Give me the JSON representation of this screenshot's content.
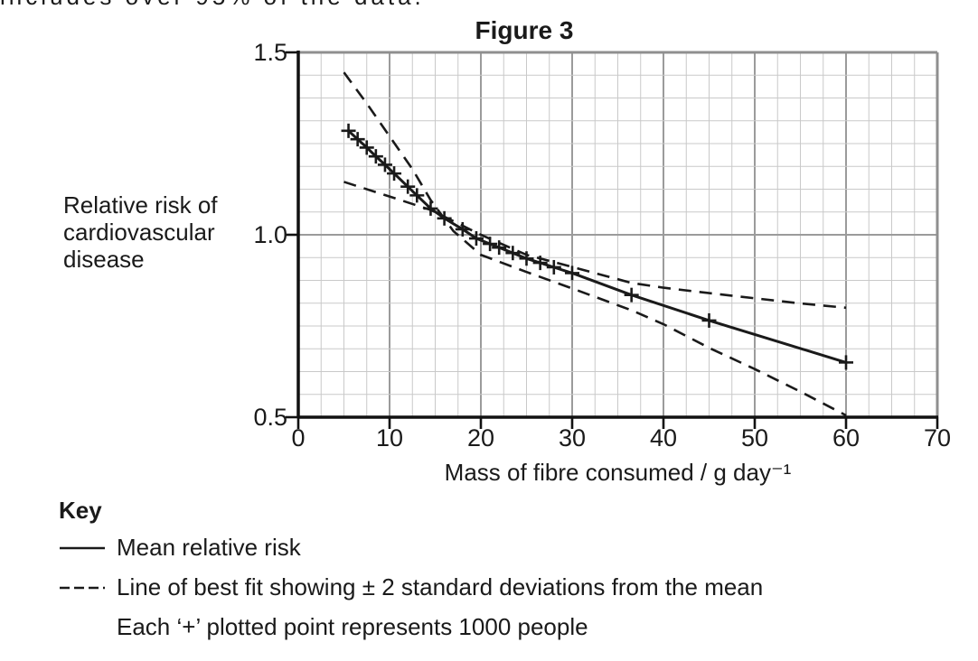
{
  "page": {
    "top_clipped_text": "includes over 95% of the data.",
    "background": "#ffffff"
  },
  "figure": {
    "title": "Figure 3"
  },
  "chart_data": {
    "type": "line",
    "title": "Figure 3",
    "xlabel": "Mass of fibre consumed / g day⁻¹",
    "ylabel": "Relative risk of cardiovascular disease",
    "ylabel_lines": [
      "Relative risk of",
      "cardiovascular",
      "disease"
    ],
    "xlim": [
      0,
      70
    ],
    "ylim": [
      0.5,
      1.5
    ],
    "x_ticks": [
      0,
      10,
      20,
      30,
      40,
      50,
      60,
      70
    ],
    "y_ticks": [
      1.5,
      1.0,
      0.5
    ],
    "grid": {
      "on": true,
      "minor_x_step": 2.5,
      "minor_y_step": 0.0625,
      "major_x_step": 10,
      "major_y_values": [
        1.0
      ]
    },
    "legend_position": "below-left",
    "colors": {
      "line": "#1a1a1a",
      "grid_minor": "#c9c9c9",
      "grid_major": "#9b9b9b",
      "border": "#8f8f8f"
    },
    "series": [
      {
        "name": "Mean relative risk",
        "line_style": "solid",
        "marker": "+",
        "marker_note": "Each '+' plotted point represents 1000 people",
        "points": [
          [
            5.5,
            1.285
          ],
          [
            6.5,
            1.262
          ],
          [
            7.5,
            1.239
          ],
          [
            8.5,
            1.215
          ],
          [
            9.5,
            1.192
          ],
          [
            10.5,
            1.168
          ],
          [
            12,
            1.132
          ],
          [
            13,
            1.108
          ],
          [
            14.5,
            1.072
          ],
          [
            16,
            1.045
          ],
          [
            18,
            1.015
          ],
          [
            19.5,
            0.99
          ],
          [
            21,
            0.975
          ],
          [
            22,
            0.965
          ],
          [
            23.5,
            0.95
          ],
          [
            25,
            0.935
          ],
          [
            26.5,
            0.923
          ],
          [
            28,
            0.911
          ],
          [
            30,
            0.895
          ],
          [
            36.5,
            0.835
          ],
          [
            45,
            0.765
          ],
          [
            60,
            0.65
          ]
        ]
      },
      {
        "name": "Line of best fit +2 standard deviations from the mean",
        "line_style": "dashed",
        "marker": null,
        "points": [
          [
            5,
            1.145
          ],
          [
            10,
            1.105
          ],
          [
            14.5,
            1.068
          ],
          [
            20,
            1.0
          ],
          [
            25,
            0.945
          ],
          [
            30,
            0.912
          ],
          [
            36.5,
            0.868
          ],
          [
            40,
            0.855
          ],
          [
            45,
            0.84
          ],
          [
            50,
            0.826
          ],
          [
            55,
            0.812
          ],
          [
            60,
            0.8
          ]
        ]
      },
      {
        "name": "Line of best fit -2 standard deviations from the mean",
        "line_style": "dashed",
        "marker": null,
        "points": [
          [
            5,
            1.445
          ],
          [
            7.5,
            1.36
          ],
          [
            10,
            1.27
          ],
          [
            12.5,
            1.18
          ],
          [
            14.5,
            1.095
          ],
          [
            17,
            1.01
          ],
          [
            20,
            0.945
          ],
          [
            25,
            0.898
          ],
          [
            30,
            0.853
          ],
          [
            36.5,
            0.793
          ],
          [
            40,
            0.755
          ],
          [
            45,
            0.69
          ],
          [
            50,
            0.632
          ],
          [
            55,
            0.57
          ],
          [
            60,
            0.505
          ]
        ]
      }
    ]
  },
  "key": {
    "heading": "Key",
    "items": [
      {
        "swatch": "solid-line",
        "label": "Mean relative risk"
      },
      {
        "swatch": "dashed-line",
        "label": "Line of best fit showing ± 2 standard deviations from the mean"
      },
      {
        "swatch": "none",
        "label": "Each ‘+’ plotted point represents 1000 people"
      }
    ]
  }
}
